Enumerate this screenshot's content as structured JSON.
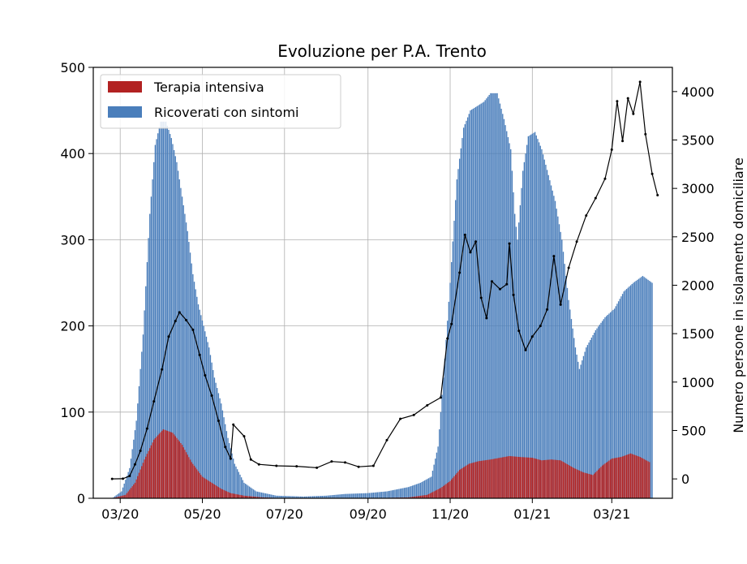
{
  "chart_data": {
    "type": "bar",
    "title": "Evoluzione per P.A. Trento",
    "xlabel": "",
    "ylabel": "",
    "y2label": "Numero persone in isolamento domiciliare",
    "x_ticks": [
      "03/20",
      "05/20",
      "07/20",
      "09/20",
      "11/20",
      "01/21",
      "03/21"
    ],
    "x_tick_dates": [
      "2020-03-01",
      "2020-05-01",
      "2020-07-01",
      "2020-09-01",
      "2020-11-01",
      "2021-01-01",
      "2021-03-01"
    ],
    "x_range": [
      "2020-02-10",
      "2021-04-15"
    ],
    "ylim": [
      0,
      500
    ],
    "y_ticks": [
      0,
      100,
      200,
      300,
      400,
      500
    ],
    "y2lim": [
      -200,
      4250
    ],
    "y2_ticks": [
      0,
      500,
      1000,
      1500,
      2000,
      2500,
      3000,
      3500,
      4000
    ],
    "grid": true,
    "legend_position": "top-left",
    "series": [
      {
        "name": "Terapia intensiva",
        "kind": "bar",
        "color": "#b22222",
        "points": [
          [
            "2020-02-24",
            0
          ],
          [
            "2020-03-05",
            4
          ],
          [
            "2020-03-12",
            18
          ],
          [
            "2020-03-19",
            45
          ],
          [
            "2020-03-26",
            68
          ],
          [
            "2020-04-02",
            80
          ],
          [
            "2020-04-09",
            76
          ],
          [
            "2020-04-16",
            62
          ],
          [
            "2020-04-23",
            42
          ],
          [
            "2020-05-01",
            25
          ],
          [
            "2020-05-08",
            18
          ],
          [
            "2020-05-15",
            11
          ],
          [
            "2020-05-22",
            6
          ],
          [
            "2020-06-01",
            3
          ],
          [
            "2020-06-15",
            1
          ],
          [
            "2020-07-01",
            0
          ],
          [
            "2020-09-01",
            0
          ],
          [
            "2020-10-01",
            1
          ],
          [
            "2020-10-15",
            4
          ],
          [
            "2020-10-25",
            12
          ],
          [
            "2020-11-01",
            20
          ],
          [
            "2020-11-08",
            33
          ],
          [
            "2020-11-15",
            40
          ],
          [
            "2020-11-22",
            43
          ],
          [
            "2020-12-01",
            45
          ],
          [
            "2020-12-08",
            47
          ],
          [
            "2020-12-15",
            49
          ],
          [
            "2020-12-22",
            48
          ],
          [
            "2021-01-01",
            47
          ],
          [
            "2021-01-08",
            44
          ],
          [
            "2021-01-15",
            45
          ],
          [
            "2021-01-22",
            44
          ],
          [
            "2021-02-01",
            35
          ],
          [
            "2021-02-08",
            30
          ],
          [
            "2021-02-15",
            27
          ],
          [
            "2021-02-22",
            38
          ],
          [
            "2021-03-01",
            46
          ],
          [
            "2021-03-08",
            48
          ],
          [
            "2021-03-15",
            52
          ],
          [
            "2021-03-22",
            48
          ],
          [
            "2021-03-29",
            42
          ]
        ]
      },
      {
        "name": "Ricoverati con sintomi",
        "kind": "bar",
        "color": "#4a7ebb",
        "points": [
          [
            "2020-02-24",
            0
          ],
          [
            "2020-03-02",
            8
          ],
          [
            "2020-03-08",
            35
          ],
          [
            "2020-03-13",
            90
          ],
          [
            "2020-03-18",
            190
          ],
          [
            "2020-03-23",
            330
          ],
          [
            "2020-03-27",
            410
          ],
          [
            "2020-03-31",
            437
          ],
          [
            "2020-04-04",
            437
          ],
          [
            "2020-04-08",
            418
          ],
          [
            "2020-04-12",
            390
          ],
          [
            "2020-04-16",
            350
          ],
          [
            "2020-04-20",
            310
          ],
          [
            "2020-04-24",
            260
          ],
          [
            "2020-04-28",
            225
          ],
          [
            "2020-05-02",
            200
          ],
          [
            "2020-05-06",
            175
          ],
          [
            "2020-05-10",
            140
          ],
          [
            "2020-05-15",
            110
          ],
          [
            "2020-05-20",
            70
          ],
          [
            "2020-05-25",
            40
          ],
          [
            "2020-06-01",
            18
          ],
          [
            "2020-06-10",
            8
          ],
          [
            "2020-06-25",
            3
          ],
          [
            "2020-07-15",
            2
          ],
          [
            "2020-08-01",
            3
          ],
          [
            "2020-08-15",
            5
          ],
          [
            "2020-09-01",
            6
          ],
          [
            "2020-09-15",
            8
          ],
          [
            "2020-10-01",
            13
          ],
          [
            "2020-10-10",
            18
          ],
          [
            "2020-10-18",
            25
          ],
          [
            "2020-10-23",
            60
          ],
          [
            "2020-10-27",
            140
          ],
          [
            "2020-11-01",
            250
          ],
          [
            "2020-11-06",
            370
          ],
          [
            "2020-11-11",
            430
          ],
          [
            "2020-11-16",
            450
          ],
          [
            "2020-11-21",
            455
          ],
          [
            "2020-11-26",
            460
          ],
          [
            "2020-12-01",
            470
          ],
          [
            "2020-12-06",
            470
          ],
          [
            "2020-12-11",
            440
          ],
          [
            "2020-12-16",
            405
          ],
          [
            "2020-12-19",
            330
          ],
          [
            "2020-12-21",
            300
          ],
          [
            "2020-12-25",
            380
          ],
          [
            "2020-12-29",
            420
          ],
          [
            "2021-01-03",
            425
          ],
          [
            "2021-01-08",
            405
          ],
          [
            "2021-01-13",
            375
          ],
          [
            "2021-01-18",
            345
          ],
          [
            "2021-01-23",
            300
          ],
          [
            "2021-01-28",
            230
          ],
          [
            "2021-02-02",
            175
          ],
          [
            "2021-02-05",
            150
          ],
          [
            "2021-02-10",
            175
          ],
          [
            "2021-02-17",
            195
          ],
          [
            "2021-02-24",
            210
          ],
          [
            "2021-03-03",
            220
          ],
          [
            "2021-03-10",
            240
          ],
          [
            "2021-03-17",
            250
          ],
          [
            "2021-03-24",
            258
          ],
          [
            "2021-03-31",
            250
          ]
        ]
      },
      {
        "name": "",
        "kind": "line",
        "axis": "right",
        "color": "#000000",
        "points": [
          [
            "2020-02-24",
            0
          ],
          [
            "2020-03-03",
            2
          ],
          [
            "2020-03-08",
            30
          ],
          [
            "2020-03-12",
            150
          ],
          [
            "2020-03-16",
            290
          ],
          [
            "2020-03-21",
            520
          ],
          [
            "2020-03-26",
            800
          ],
          [
            "2020-04-01",
            1130
          ],
          [
            "2020-04-06",
            1470
          ],
          [
            "2020-04-11",
            1630
          ],
          [
            "2020-04-14",
            1720
          ],
          [
            "2020-04-19",
            1640
          ],
          [
            "2020-04-24",
            1540
          ],
          [
            "2020-04-29",
            1280
          ],
          [
            "2020-05-03",
            1070
          ],
          [
            "2020-05-08",
            860
          ],
          [
            "2020-05-13",
            600
          ],
          [
            "2020-05-18",
            330
          ],
          [
            "2020-05-22",
            210
          ],
          [
            "2020-05-24",
            560
          ],
          [
            "2020-06-01",
            440
          ],
          [
            "2020-06-06",
            200
          ],
          [
            "2020-06-12",
            150
          ],
          [
            "2020-06-25",
            135
          ],
          [
            "2020-07-10",
            130
          ],
          [
            "2020-07-25",
            115
          ],
          [
            "2020-08-05",
            180
          ],
          [
            "2020-08-15",
            170
          ],
          [
            "2020-08-25",
            125
          ],
          [
            "2020-09-05",
            135
          ],
          [
            "2020-09-15",
            400
          ],
          [
            "2020-09-25",
            620
          ],
          [
            "2020-10-05",
            660
          ],
          [
            "2020-10-15",
            760
          ],
          [
            "2020-10-25",
            840
          ],
          [
            "2020-10-30",
            1450
          ],
          [
            "2020-11-02",
            1600
          ],
          [
            "2020-11-08",
            2130
          ],
          [
            "2020-11-12",
            2520
          ],
          [
            "2020-11-16",
            2340
          ],
          [
            "2020-11-20",
            2450
          ],
          [
            "2020-11-24",
            1870
          ],
          [
            "2020-11-28",
            1660
          ],
          [
            "2020-12-02",
            2040
          ],
          [
            "2020-12-08",
            1960
          ],
          [
            "2020-12-13",
            2010
          ],
          [
            "2020-12-15",
            2430
          ],
          [
            "2020-12-18",
            1900
          ],
          [
            "2020-12-22",
            1530
          ],
          [
            "2020-12-27",
            1330
          ],
          [
            "2021-01-01",
            1470
          ],
          [
            "2021-01-07",
            1580
          ],
          [
            "2021-01-12",
            1750
          ],
          [
            "2021-01-17",
            2300
          ],
          [
            "2021-01-22",
            1800
          ],
          [
            "2021-01-28",
            2180
          ],
          [
            "2021-02-03",
            2450
          ],
          [
            "2021-02-10",
            2720
          ],
          [
            "2021-02-17",
            2900
          ],
          [
            "2021-02-24",
            3100
          ],
          [
            "2021-03-01",
            3400
          ],
          [
            "2021-03-05",
            3900
          ],
          [
            "2021-03-09",
            3490
          ],
          [
            "2021-03-13",
            3930
          ],
          [
            "2021-03-17",
            3770
          ],
          [
            "2021-03-22",
            4100
          ],
          [
            "2021-03-26",
            3560
          ],
          [
            "2021-03-31",
            3150
          ],
          [
            "2021-04-04",
            2930
          ]
        ]
      }
    ]
  }
}
